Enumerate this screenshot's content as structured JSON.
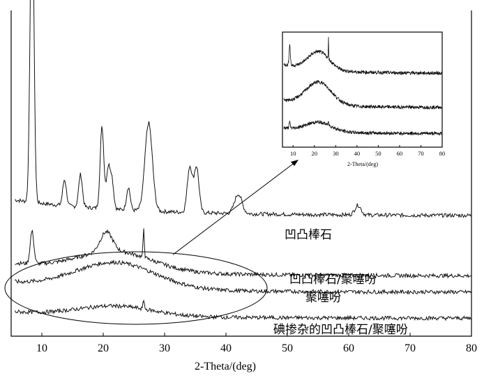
{
  "chart_data": [
    {
      "type": "line",
      "xlabel": "2-Theta/(deg)",
      "ylabel": "",
      "xlim": [
        5,
        80
      ],
      "xticks": [
        10,
        20,
        30,
        40,
        50,
        60,
        70,
        80
      ],
      "grid": false,
      "series": [
        {
          "name": "凹凸棒石",
          "baseline": 0.37,
          "peaks": [
            [
              8.4,
              1.0,
              0.3
            ],
            [
              13.7,
              0.08,
              0.3
            ],
            [
              16.3,
              0.1,
              0.3
            ],
            [
              19.8,
              0.25,
              0.3
            ],
            [
              20.8,
              0.12,
              0.3
            ],
            [
              21.4,
              0.09,
              0.3
            ],
            [
              24.1,
              0.07,
              0.3
            ],
            [
              27.4,
              0.27,
              0.6
            ],
            [
              34.1,
              0.14,
              0.4
            ],
            [
              35.2,
              0.14,
              0.4
            ],
            [
              42.0,
              0.06,
              0.6
            ],
            [
              61.5,
              0.03,
              0.5
            ]
          ],
          "decay": 0.05
        },
        {
          "name": "凹凸棒石/聚噻吩",
          "baseline": 0.185,
          "peaks": [
            [
              8.4,
              0.1,
              0.3
            ],
            [
              20.5,
              0.06,
              1.0
            ],
            [
              26.6,
              0.09,
              0.1
            ]
          ],
          "hump": [
            22.0,
            0.06,
            6.0
          ],
          "decay": 0.04
        },
        {
          "name": "聚噻吩",
          "baseline": 0.135,
          "peaks": [],
          "hump": [
            22.0,
            0.08,
            6.5
          ],
          "decay": 0.03
        },
        {
          "name": "碘掺杂的凹凸棒石/聚噻吩",
          "baseline": 0.055,
          "peaks": [
            [
              26.6,
              0.03,
              0.1
            ]
          ],
          "hump": [
            22.0,
            0.03,
            6.0
          ],
          "decay": 0.02
        }
      ]
    },
    {
      "type": "line",
      "title": "",
      "xlabel": "2-Theta/(deg)",
      "xlim": [
        5,
        80
      ],
      "xticks": [
        10,
        20,
        30,
        40,
        50,
        60,
        70,
        80
      ],
      "grid": false,
      "series": [
        {
          "baseline": 0.65,
          "peaks": [
            [
              8.4,
              0.18,
              0.3
            ],
            [
              26.6,
              0.18,
              0.1
            ]
          ],
          "hump": [
            22.0,
            0.16,
            5.0
          ],
          "decay": 0.08
        },
        {
          "baseline": 0.35,
          "peaks": [],
          "hump": [
            22.0,
            0.2,
            6.0
          ],
          "decay": 0.06
        },
        {
          "baseline": 0.12,
          "peaks": [
            [
              8.4,
              0.05,
              0.3
            ],
            [
              26.6,
              0.04,
              0.1
            ]
          ],
          "hump": [
            22.0,
            0.08,
            6.0
          ],
          "decay": 0.05
        }
      ]
    }
  ]
}
